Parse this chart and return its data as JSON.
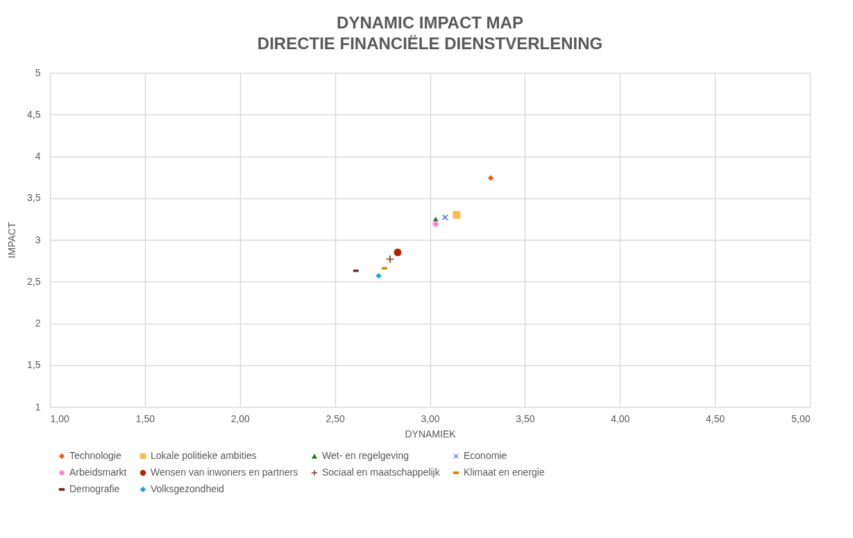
{
  "chart_data": {
    "type": "scatter",
    "title": "DYNAMIC IMPACT MAP",
    "subtitle": "DIRECTIE FINANCIËLE DIENSTVERLENING",
    "xlabel": "DYNAMIEK",
    "ylabel": "IMPACT",
    "xlim": [
      1,
      5
    ],
    "ylim": [
      1,
      5
    ],
    "xticks": [
      {
        "value": 1,
        "label": "1,00"
      },
      {
        "value": 1.5,
        "label": "1,50"
      },
      {
        "value": 2,
        "label": "2,00"
      },
      {
        "value": 2.5,
        "label": "2,50"
      },
      {
        "value": 3,
        "label": "3,00"
      },
      {
        "value": 3.5,
        "label": "3,50"
      },
      {
        "value": 4,
        "label": "4,00"
      },
      {
        "value": 4.5,
        "label": "4,50"
      },
      {
        "value": 5,
        "label": "5,00"
      }
    ],
    "yticks": [
      1,
      {
        "value": 1.5,
        "label": "1,5"
      },
      2,
      {
        "value": 2.5,
        "label": "2,5"
      },
      3,
      {
        "value": 3.5,
        "label": "3,5"
      },
      4,
      {
        "value": 4.5,
        "label": "4,5"
      },
      5
    ],
    "grid": true,
    "legend": "bottom",
    "series": [
      {
        "name": "Technologie",
        "color": "#ee5a2a",
        "marker": "diamond",
        "x": [
          3.32
        ],
        "values": [
          3.74
        ]
      },
      {
        "name": "Lokale politieke ambities",
        "color": "#ffb94a",
        "marker": "square",
        "x": [
          3.14
        ],
        "values": [
          3.3
        ]
      },
      {
        "name": "Wet- en regelgeving",
        "color": "#1e7b1e",
        "marker": "triangle",
        "x": [
          3.03
        ],
        "values": [
          3.25
        ]
      },
      {
        "name": "Economie",
        "color": "#5a78e0",
        "marker": "cross",
        "x": [
          3.08
        ],
        "values": [
          3.27
        ]
      },
      {
        "name": "Arbeidsmarkt",
        "color": "#ff6ec7",
        "marker": "star",
        "x": [
          3.03
        ],
        "values": [
          3.19
        ]
      },
      {
        "name": "Wensen van inwoners en partners",
        "color": "#b52000",
        "marker": "circle",
        "x": [
          2.83
        ],
        "values": [
          2.85
        ]
      },
      {
        "name": "Sociaal en maatschappelijk",
        "color": "#8b2e1e",
        "marker": "plus",
        "x": [
          2.79
        ],
        "values": [
          2.77
        ]
      },
      {
        "name": "Klimaat en energie",
        "color": "#d08a00",
        "x": [
          2.76
        ],
        "values": [
          2.66
        ]
      },
      {
        "name": "Demografie",
        "color": "#6e2a1a",
        "x": [
          2.61
        ],
        "values": [
          2.63
        ]
      },
      {
        "name": "Volksgezondheid",
        "color": "#1aa7e8",
        "marker": "diamond",
        "x": [
          2.73
        ],
        "values": [
          2.57
        ]
      }
    ]
  }
}
